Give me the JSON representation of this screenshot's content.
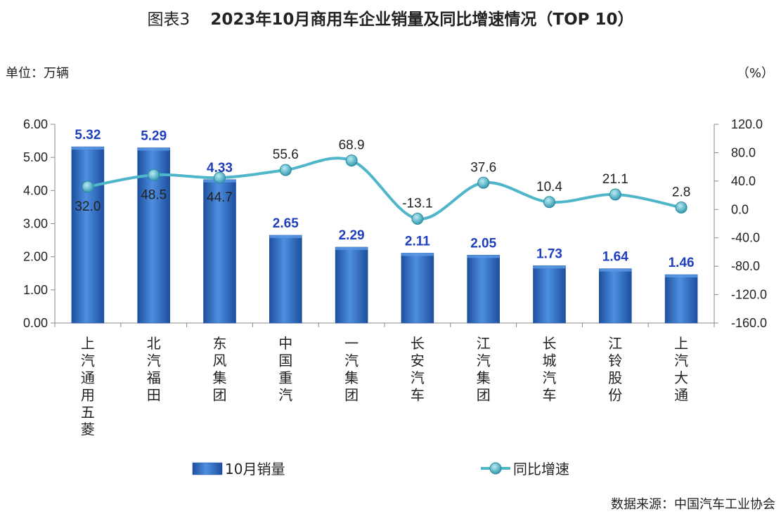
{
  "title_prefix": "图表3",
  "title_main": "2023年10月商用车企业销量及同比增速情况（TOP 10）",
  "unit_left": "单位：万辆",
  "unit_right": "（%）",
  "source": "数据来源：中国汽车工业协会",
  "colors": {
    "bar": "#3f7fd6",
    "bar_dark": "#1d4f9e",
    "line": "#4fb6c9",
    "marker": "#3a9fb5",
    "bar_label": "#1f3fbf"
  },
  "chart_data": {
    "type": "bar",
    "categories": [
      "上汽通用五菱",
      "北汽福田",
      "东风集团",
      "中国重汽",
      "一汽集团",
      "长安汽车",
      "江汽集团",
      "长城汽车",
      "江铃股份",
      "上汽大通"
    ],
    "series": [
      {
        "name": "10月销量",
        "type": "bar",
        "axis": "left",
        "values": [
          5.32,
          5.29,
          4.33,
          2.65,
          2.29,
          2.11,
          2.05,
          1.73,
          1.64,
          1.46
        ]
      },
      {
        "name": "同比增速",
        "type": "line",
        "axis": "right",
        "values": [
          32.0,
          48.5,
          44.7,
          55.6,
          68.9,
          -13.1,
          37.6,
          10.4,
          21.1,
          2.8
        ]
      }
    ],
    "y_left": {
      "min": 0,
      "max": 6,
      "ticks": [
        "0.00",
        "1.00",
        "2.00",
        "3.00",
        "4.00",
        "5.00",
        "6.00"
      ]
    },
    "y_right": {
      "min": -160,
      "max": 120,
      "ticks": [
        "-160.0",
        "-120.0",
        "-80.0",
        "-40.0",
        "0.0",
        "40.0",
        "80.0",
        "120.0"
      ]
    },
    "legend_position": "bottom",
    "grid": false
  }
}
